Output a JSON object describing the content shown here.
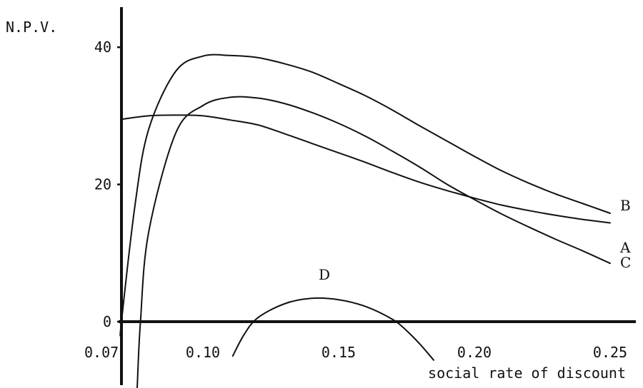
{
  "chart_data": {
    "type": "line",
    "ylabel": "N.P.V.",
    "xlabel": "social rate of discount",
    "xlim": [
      0.07,
      0.25
    ],
    "ylim": [
      0,
      45
    ],
    "x_ticks": [
      "0.07",
      "0.10",
      "0.15",
      "0.20",
      "0.25"
    ],
    "y_ticks": [
      "0",
      "20",
      "40"
    ],
    "grid": false,
    "series": [
      {
        "name": "A",
        "x": [
          0.07,
          0.08,
          0.09,
          0.1,
          0.11,
          0.12,
          0.13,
          0.14,
          0.15,
          0.16,
          0.17,
          0.18,
          0.19,
          0.2,
          0.21,
          0.22,
          0.23,
          0.24,
          0.25
        ],
        "values": [
          29.5,
          30.0,
          30.1,
          30.0,
          29.4,
          28.7,
          27.4,
          26.0,
          24.6,
          23.2,
          21.7,
          20.3,
          19.1,
          18.0,
          17.0,
          16.2,
          15.5,
          14.9,
          14.4
        ]
      },
      {
        "name": "B",
        "x": [
          0.07,
          0.075,
          0.08,
          0.09,
          0.1,
          0.11,
          0.12,
          0.13,
          0.14,
          0.15,
          0.16,
          0.17,
          0.18,
          0.19,
          0.2,
          0.21,
          0.22,
          0.23,
          0.24,
          0.25
        ],
        "values": [
          0,
          17,
          28,
          36.5,
          38.7,
          38.8,
          38.5,
          37.6,
          36.4,
          34.7,
          32.9,
          30.8,
          28.5,
          26.3,
          24.1,
          22.0,
          20.2,
          18.6,
          17.2,
          15.8
        ]
      },
      {
        "name": "C",
        "x": [
          0.077,
          0.08,
          0.09,
          0.1,
          0.11,
          0.12,
          0.13,
          0.14,
          0.15,
          0.16,
          0.17,
          0.18,
          0.19,
          0.2,
          0.21,
          0.22,
          0.23,
          0.24,
          0.25
        ],
        "values": [
          0,
          13,
          27.5,
          31.5,
          32.7,
          32.6,
          31.8,
          30.5,
          28.9,
          27.0,
          24.8,
          22.5,
          20.0,
          17.8,
          15.7,
          13.8,
          12.0,
          10.3,
          8.5
        ]
      },
      {
        "name": "D",
        "x": [
          0.111,
          0.115,
          0.12,
          0.13,
          0.14,
          0.15,
          0.16,
          0.17,
          0.175,
          0.18,
          0.185
        ],
        "values": [
          -5.0,
          -2.0,
          0.5,
          2.6,
          3.4,
          3.2,
          2.2,
          0.3,
          -1.3,
          -3.3,
          -5.6
        ]
      }
    ]
  }
}
